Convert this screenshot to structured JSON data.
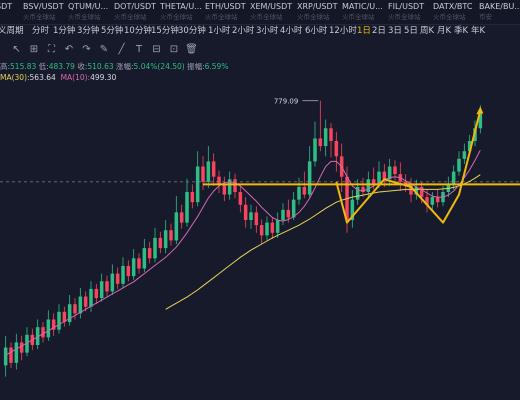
{
  "tickers": [
    {
      "symbol": "SDT",
      "sub": ""
    },
    {
      "symbol": "BSV/USDT",
      "sub": "火币全球站"
    },
    {
      "symbol": "QTUM/U...",
      "sub": "火币全球站"
    },
    {
      "symbol": "DOT/USDT",
      "sub": "火币全球站"
    },
    {
      "symbol": "THETA/U...",
      "sub": "火币全球站"
    },
    {
      "symbol": "ETH/USDT",
      "sub": "火币全球站"
    },
    {
      "symbol": "XEM/USDT",
      "sub": "火币全球站"
    },
    {
      "symbol": "XRP/USDT",
      "sub": "火币全球站"
    },
    {
      "symbol": "MATIC/U...",
      "sub": "火币全球站"
    },
    {
      "symbol": "FIL/USDT",
      "sub": "火币全球站"
    },
    {
      "symbol": "DATX/BTC",
      "sub": "火币全球站"
    },
    {
      "symbol": "BAKE/BU...",
      "sub": "币安"
    }
  ],
  "intervals": [
    {
      "label": "义周期",
      "active": false
    },
    {
      "label": "分时",
      "active": false
    },
    {
      "label": "1分钟",
      "active": false
    },
    {
      "label": "3分钟",
      "active": false
    },
    {
      "label": "5分钟",
      "active": false
    },
    {
      "label": "10分钟",
      "active": false
    },
    {
      "label": "15分钟",
      "active": false
    },
    {
      "label": "30分钟",
      "active": false
    },
    {
      "label": "1小时",
      "active": false
    },
    {
      "label": "2小时",
      "active": false
    },
    {
      "label": "3小时",
      "active": false
    },
    {
      "label": "4小时",
      "active": false
    },
    {
      "label": "6小时",
      "active": false
    },
    {
      "label": "12小时",
      "active": false
    },
    {
      "label": "1日",
      "active": true
    },
    {
      "label": "2日",
      "active": false
    },
    {
      "label": "3日",
      "active": false
    },
    {
      "label": "5日",
      "active": false
    },
    {
      "label": "周K",
      "active": false
    },
    {
      "label": "月K",
      "active": false
    },
    {
      "label": "季K",
      "active": false
    },
    {
      "label": "年K",
      "active": false
    }
  ],
  "toolbar_icons": [
    "cursor-icon",
    "add-icon",
    "fullscreen-icon",
    "undo-icon",
    "redo-icon",
    "brush-icon",
    "line-icon",
    "text-icon",
    "ruler-icon",
    "lock-icon",
    "trash-icon"
  ],
  "toolbar_glyphs": [
    "↖",
    "⊞",
    "⛶",
    "↶",
    "↷",
    "✎",
    "╱",
    "T",
    "⊟",
    "⊡",
    "🗑"
  ],
  "ohlc": {
    "high_label": "高:",
    "high": "515.83",
    "low_label": "低:",
    "low": "483.79",
    "close_label": "收:",
    "close": "510.63",
    "change_label": "涨幅:",
    "change": "5.04%(24.50)",
    "amplitude_label": "振幅:",
    "amplitude": "6.59%"
  },
  "ma": {
    "ma30_label": "MA(30):",
    "ma30": "563.64",
    "ma10_label": "MA(10):",
    "ma10": "499.30"
  },
  "colors": {
    "up": "#2ebd85",
    "down": "#f6465d",
    "ma30": "#e6d35a",
    "ma10": "#d46ab0",
    "annotation": "#f0b90b",
    "background": "#171a2b"
  },
  "chart_data": {
    "type": "candlestick",
    "max_label": "779.09",
    "ylim": [
      200,
      800
    ],
    "candles": [
      [
        260,
        295,
        238,
        318
      ],
      [
        295,
        265,
        255,
        305
      ],
      [
        265,
        305,
        252,
        322
      ],
      [
        305,
        285,
        270,
        318
      ],
      [
        285,
        320,
        278,
        335
      ],
      [
        320,
        300,
        290,
        332
      ],
      [
        300,
        335,
        292,
        350
      ],
      [
        335,
        315,
        305,
        345
      ],
      [
        315,
        350,
        308,
        368
      ],
      [
        350,
        330,
        318,
        362
      ],
      [
        330,
        365,
        322,
        380
      ],
      [
        365,
        345,
        336,
        375
      ],
      [
        345,
        380,
        338,
        398
      ],
      [
        380,
        362,
        350,
        392
      ],
      [
        362,
        395,
        352,
        412
      ],
      [
        395,
        375,
        366,
        405
      ],
      [
        375,
        410,
        365,
        425
      ],
      [
        410,
        392,
        380,
        420
      ],
      [
        392,
        425,
        385,
        440
      ],
      [
        425,
        405,
        395,
        436
      ],
      [
        405,
        440,
        398,
        458
      ],
      [
        440,
        420,
        410,
        452
      ],
      [
        420,
        455,
        412,
        472
      ],
      [
        455,
        435,
        425,
        466
      ],
      [
        435,
        470,
        428,
        488
      ],
      [
        470,
        450,
        440,
        480
      ],
      [
        450,
        490,
        443,
        508
      ],
      [
        490,
        470,
        460,
        502
      ],
      [
        470,
        510,
        462,
        530
      ],
      [
        510,
        490,
        480,
        522
      ],
      [
        490,
        525,
        480,
        545
      ],
      [
        525,
        505,
        495,
        538
      ],
      [
        505,
        560,
        498,
        592
      ],
      [
        560,
        540,
        528,
        575
      ],
      [
        540,
        600,
        532,
        626
      ],
      [
        600,
        580,
        568,
        615
      ],
      [
        580,
        650,
        572,
        680
      ],
      [
        650,
        620,
        604,
        670
      ],
      [
        620,
        660,
        608,
        690
      ],
      [
        660,
        630,
        612,
        676
      ],
      [
        630,
        615,
        598,
        642
      ],
      [
        615,
        595,
        582,
        630
      ],
      [
        595,
        625,
        585,
        640
      ],
      [
        625,
        600,
        588,
        636
      ],
      [
        600,
        575,
        560,
        612
      ],
      [
        575,
        545,
        530,
        590
      ],
      [
        545,
        560,
        528,
        575
      ],
      [
        560,
        535,
        520,
        572
      ],
      [
        535,
        515,
        498,
        546
      ],
      [
        515,
        540,
        505,
        552
      ],
      [
        540,
        520,
        508,
        550
      ],
      [
        520,
        545,
        510,
        560
      ],
      [
        545,
        565,
        535,
        578
      ],
      [
        565,
        550,
        540,
        585
      ],
      [
        550,
        585,
        545,
        600
      ],
      [
        585,
        610,
        575,
        628
      ],
      [
        610,
        595,
        588,
        640
      ],
      [
        595,
        660,
        590,
        690
      ],
      [
        660,
        705,
        650,
        738
      ],
      [
        705,
        690,
        680,
        779
      ],
      [
        690,
        725,
        670,
        742
      ],
      [
        725,
        700,
        668,
        735
      ],
      [
        700,
        670,
        640,
        718
      ],
      [
        670,
        630,
        600,
        695
      ],
      [
        630,
        545,
        520,
        650
      ],
      [
        545,
        585,
        530,
        604
      ],
      [
        585,
        610,
        575,
        625
      ],
      [
        610,
        600,
        590,
        628
      ],
      [
        600,
        625,
        590,
        640
      ],
      [
        625,
        615,
        605,
        648
      ],
      [
        615,
        640,
        608,
        660
      ],
      [
        640,
        625,
        610,
        655
      ],
      [
        625,
        650,
        612,
        665
      ],
      [
        650,
        635,
        622,
        662
      ],
      [
        635,
        620,
        602,
        658
      ],
      [
        620,
        615,
        600,
        635
      ],
      [
        615,
        595,
        580,
        628
      ],
      [
        595,
        610,
        585,
        624
      ],
      [
        610,
        590,
        578,
        620
      ],
      [
        590,
        575,
        560,
        605
      ],
      [
        575,
        590,
        565,
        600
      ],
      [
        590,
        580,
        570,
        605
      ],
      [
        580,
        600,
        572,
        612
      ],
      [
        600,
        615,
        590,
        630
      ],
      [
        615,
        640,
        605,
        652
      ],
      [
        640,
        665,
        632,
        680
      ],
      [
        665,
        680,
        655,
        695
      ],
      [
        680,
        700,
        672,
        712
      ],
      [
        700,
        725,
        690,
        740
      ],
      [
        725,
        755,
        715,
        770
      ]
    ],
    "ma10": [
      280,
      286,
      292,
      298,
      304,
      310,
      316,
      322,
      328,
      334,
      340,
      346,
      352,
      358,
      364,
      370,
      376,
      382,
      388,
      394,
      400,
      406,
      412,
      418,
      424,
      432,
      440,
      448,
      456,
      464,
      472,
      482,
      492,
      506,
      520,
      536,
      552,
      570,
      588,
      602,
      612,
      618,
      620,
      618,
      612,
      602,
      592,
      582,
      570,
      560,
      550,
      545,
      543,
      546,
      552,
      560,
      572,
      588,
      608,
      630,
      650,
      660,
      660,
      650,
      630,
      612,
      604,
      602,
      606,
      612,
      618,
      624,
      628,
      630,
      628,
      622,
      616,
      610,
      604,
      598,
      592,
      590,
      590,
      594,
      602,
      614,
      628,
      644,
      662,
      682
    ],
    "ma30": [
      null,
      null,
      null,
      null,
      null,
      null,
      null,
      null,
      null,
      null,
      null,
      null,
      null,
      null,
      null,
      null,
      null,
      null,
      null,
      null,
      null,
      null,
      null,
      null,
      null,
      null,
      null,
      null,
      null,
      null,
      370,
      376,
      382,
      388,
      394,
      401,
      408,
      416,
      424,
      432,
      440,
      448,
      456,
      464,
      472,
      479,
      486,
      492,
      498,
      504,
      510,
      515,
      520,
      525,
      530,
      535,
      541,
      547,
      554,
      561,
      568,
      574,
      580,
      584,
      587,
      590,
      592,
      594,
      596,
      598,
      600,
      601,
      602,
      603,
      604,
      605,
      605,
      605,
      605,
      605,
      605,
      605,
      606,
      607,
      609,
      612,
      616,
      621,
      627,
      634
    ],
    "horizontal_line": 615,
    "pattern_points": [
      [
        62,
        620
      ],
      [
        64,
        540
      ],
      [
        71,
        625
      ],
      [
        76,
        610
      ],
      [
        82,
        540
      ],
      [
        85,
        595
      ],
      [
        89,
        760
      ]
    ],
    "dotted_price": 620
  }
}
